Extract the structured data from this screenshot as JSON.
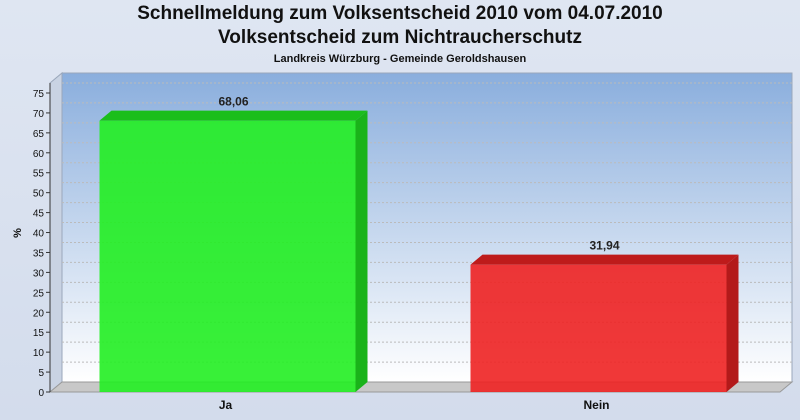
{
  "header": {
    "title": "Schnellmeldung zum Volksentscheid 2010 vom 04.07.2010",
    "subtitle": "Volksentscheid zum Nichtraucherschutz",
    "region": "Landkreis Würzburg - Gemeinde Geroldshausen"
  },
  "chart_data": {
    "type": "bar",
    "categories": [
      "Ja",
      "Nein"
    ],
    "values": [
      68.06,
      31.94
    ],
    "value_labels": [
      "68,06",
      "31,94"
    ],
    "colors": [
      "#22ee22",
      "#ee2222"
    ],
    "ylabel": "%",
    "ylim": [
      0,
      75
    ],
    "yticks": [
      0,
      5,
      10,
      15,
      20,
      25,
      30,
      35,
      40,
      45,
      50,
      55,
      60,
      65,
      70,
      75
    ],
    "grid": true
  }
}
